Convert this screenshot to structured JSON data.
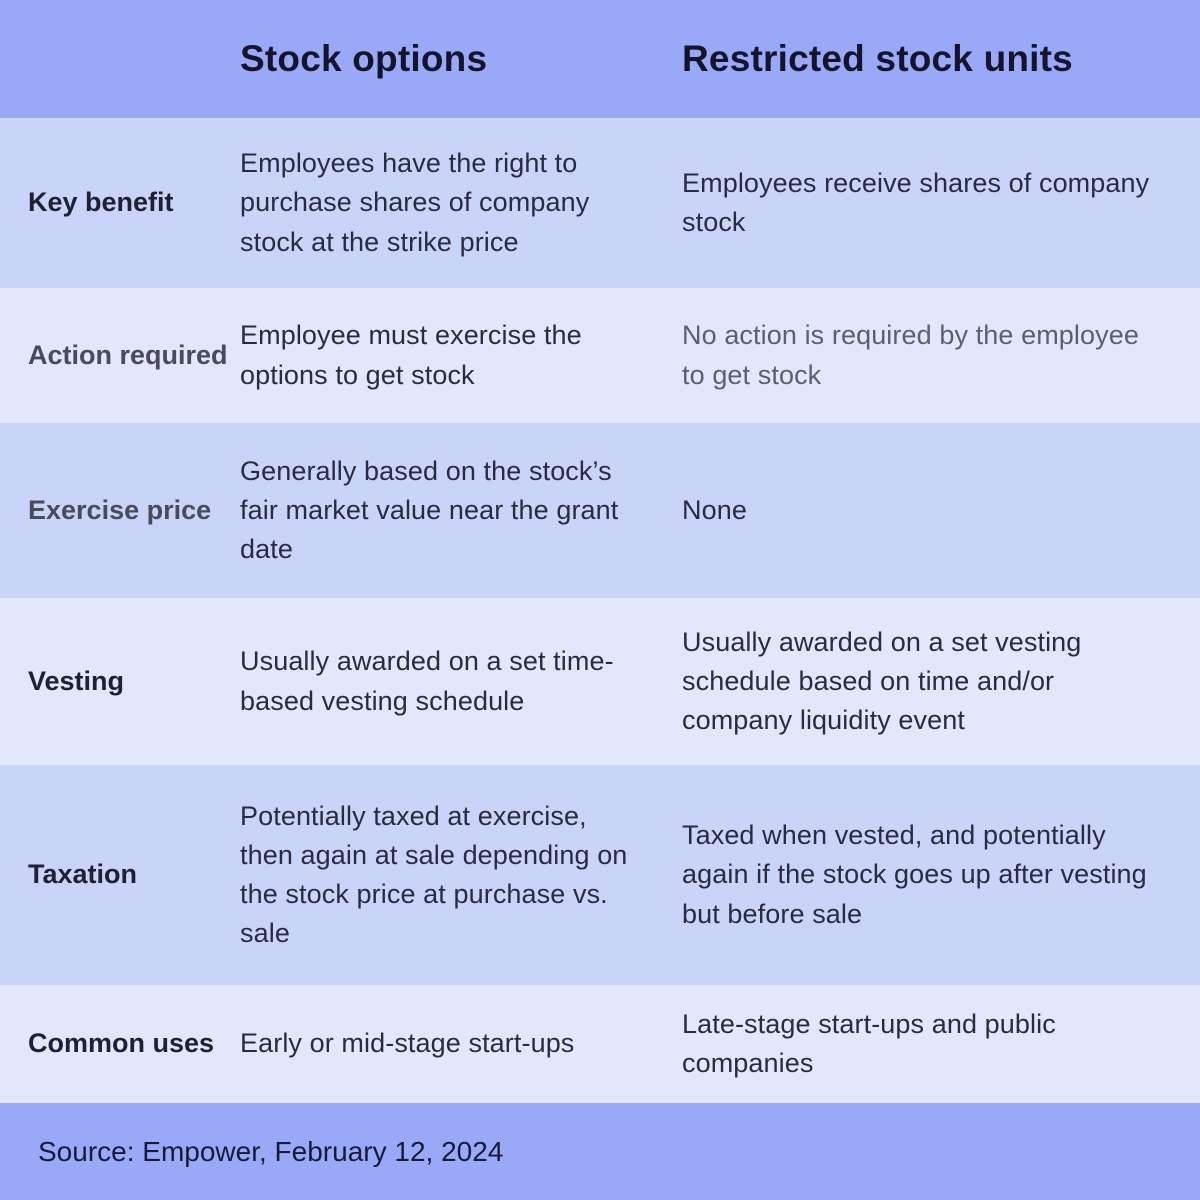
{
  "chart_data": {
    "type": "table",
    "title": "",
    "columns": [
      "",
      "Stock options",
      "Restricted stock units"
    ],
    "rows": [
      [
        "Key benefit",
        "Employees have the right to purchase shares of company stock at the strike price",
        "Employees receive shares of company stock"
      ],
      [
        "Action required",
        "Employee must exercise the options to get stock",
        "No action is required by the employee to get stock"
      ],
      [
        "Exercise price",
        "Generally based on the stock’s fair market value near the grant date",
        "None"
      ],
      [
        "Vesting",
        "Usually awarded on a set time-based vesting schedule",
        "Usually awarded on a set vesting schedule based on time and/or company liquidity event"
      ],
      [
        "Taxation",
        "Potentially taxed at exercise, then again at sale depending on the stock price at purchase vs. sale",
        "Taxed when vested, and potentially again if the stock goes up after vesting but before sale"
      ],
      [
        "Common uses",
        "Early or mid-stage start-ups",
        "Late-stage start-ups and public companies"
      ]
    ],
    "source": "Source: Empower, February 12, 2024",
    "legend_position": "none",
    "grid": false
  },
  "header": {
    "col_stock_options": "Stock options",
    "col_rsu": "Restricted stock units"
  },
  "rows": [
    {
      "label": "Key benefit",
      "stock_options": "Employees have the right to purchase shares of company stock at the strike price",
      "rsu": "Employees receive shares of company stock"
    },
    {
      "label": "Action required",
      "stock_options": "Employee must exercise the options to get stock",
      "rsu": "No action is required by the employee to get stock"
    },
    {
      "label": "Exercise price",
      "stock_options": "Generally based on the stock’s fair market value near the grant date",
      "rsu": "None"
    },
    {
      "label": "Vesting",
      "stock_options": "Usually awarded on a set time-based vesting schedule",
      "rsu": "Usually awarded on a set vesting schedule based on time and/or company liquidity event"
    },
    {
      "label": "Taxation",
      "stock_options": "Potentially taxed at exercise, then again at sale depending on the stock price at purchase vs. sale",
      "rsu": "Taxed when vested, and potentially again if the stock goes up after vesting but before sale"
    },
    {
      "label": "Common uses",
      "stock_options": "Early or mid-stage start-ups",
      "rsu": "Late-stage start-ups and public companies"
    }
  ],
  "footer": {
    "source": "Source: Empower, February 12, 2024"
  },
  "colors": {
    "header_bg": "#99a9f7",
    "row_dark": "#cad3f8",
    "row_light": "#e3e7fb",
    "header_text": "#14142e",
    "label_text": "#1f2033",
    "label_soft_text": "#4a4a5c",
    "body_text": "#2a2b42",
    "muted_text": "#5c5e72",
    "footer_text": "#191939"
  }
}
